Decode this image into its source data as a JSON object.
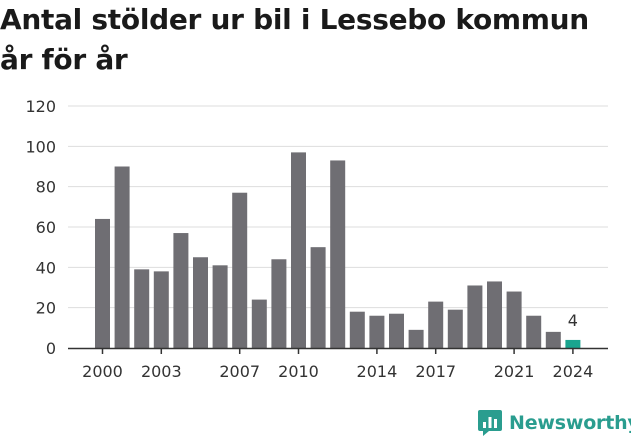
{
  "title_line1": "Antal stölder ur bil i Lessebo kommun",
  "title_line2": "år för år",
  "brand": "Newsworthy",
  "colors": {
    "bar": "#6f6e73",
    "highlight": "#1aa58f",
    "grid": "#dddddd",
    "axis": "#333333",
    "text": "#333333",
    "brand": "#2a9d8f"
  },
  "chart_data": {
    "type": "bar",
    "categories": [
      2000,
      2001,
      2002,
      2003,
      2004,
      2005,
      2006,
      2007,
      2008,
      2009,
      2010,
      2011,
      2012,
      2013,
      2014,
      2015,
      2016,
      2017,
      2018,
      2019,
      2020,
      2021,
      2022,
      2023,
      2024
    ],
    "values": [
      64,
      90,
      39,
      38,
      57,
      45,
      41,
      77,
      24,
      44,
      97,
      50,
      93,
      18,
      16,
      17,
      9,
      23,
      19,
      31,
      33,
      28,
      16,
      8,
      4
    ],
    "highlight_index": 24,
    "highlight_label": "4",
    "ylim": [
      0,
      120
    ],
    "yticks": [
      0,
      20,
      40,
      60,
      80,
      100,
      120
    ],
    "xticks": [
      2000,
      2003,
      2007,
      2010,
      2014,
      2017,
      2021,
      2024
    ],
    "grid": true
  }
}
